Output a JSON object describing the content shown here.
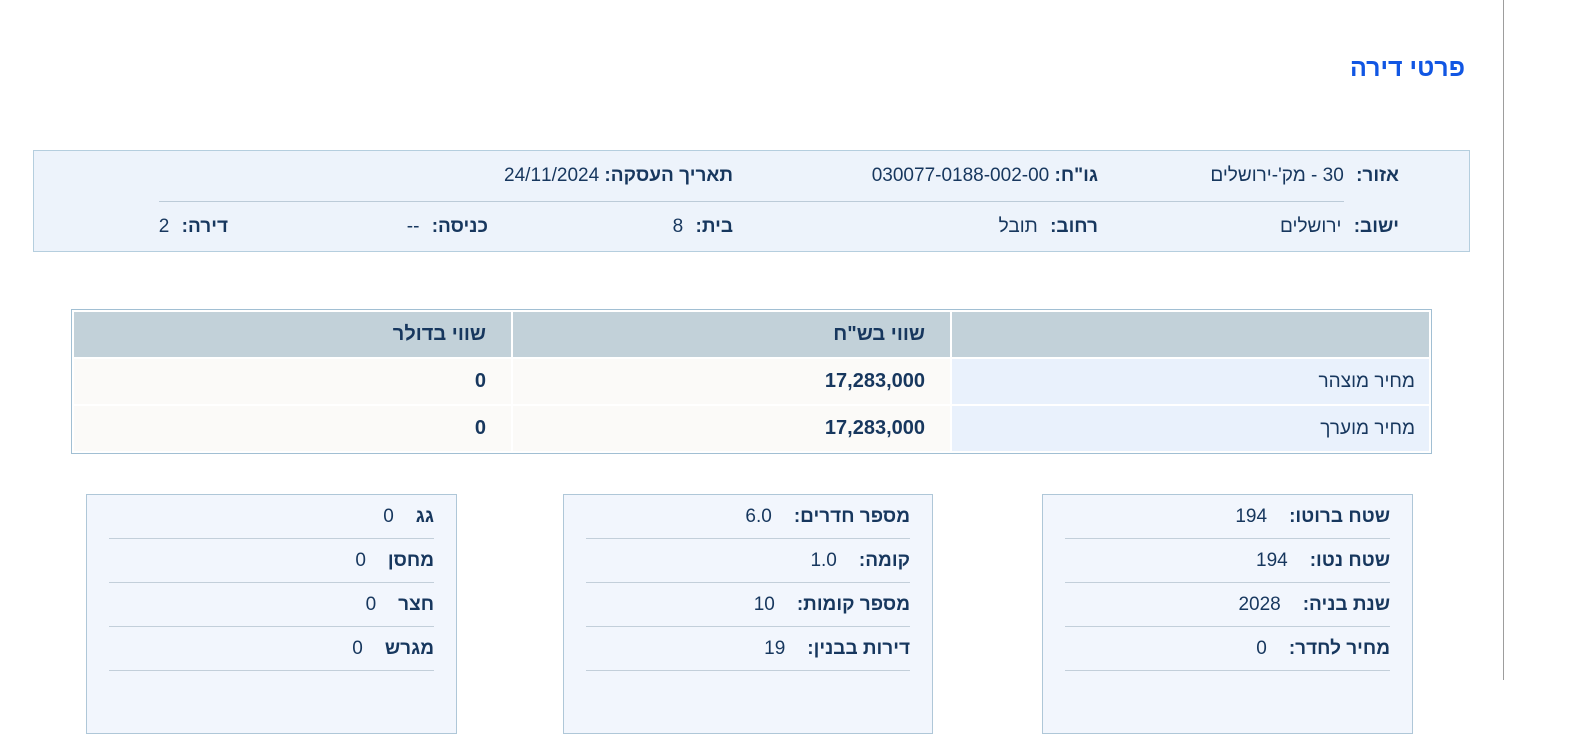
{
  "page": {
    "title": "פרטי דירה"
  },
  "colors": {
    "title_blue": "#1156e3",
    "text_navy": "#17375e",
    "table_header_bg": "#c2d1d9",
    "label_cell_bg": "#e9f1fc",
    "box_bg": "#f2f6fd",
    "info_box_bg": "#edf3fb"
  },
  "info_box": {
    "area": {
      "label": "אזור:",
      "value": "30 - מק'-ירושלים"
    },
    "gush_helka": {
      "label": "גו\"ח:",
      "value": "030077-0188-002-00"
    },
    "deal_date": {
      "label": "תאריך העסקה:",
      "value": "24/11/2024"
    },
    "city": {
      "label": "ישוב:",
      "value": "ירושלים"
    },
    "street": {
      "label": "רחוב:",
      "value": "תובל"
    },
    "house": {
      "label": "בית:",
      "value": "8"
    },
    "entrance": {
      "label": "כניסה:",
      "value": "--"
    },
    "apartment": {
      "label": "דירה:",
      "value": "2"
    }
  },
  "price_table": {
    "headers": {
      "label": "",
      "nis": "שווי בש\"ח",
      "usd": "שווי בדולר"
    },
    "rows": [
      {
        "label": "מחיר מוצהר",
        "nis": "17,283,000",
        "usd": "0"
      },
      {
        "label": "מחיר מוערך",
        "nis": "17,283,000",
        "usd": "0"
      }
    ]
  },
  "detail_boxes": {
    "areas": {
      "rows": [
        {
          "label": "שטח ברוטו:",
          "value": "194"
        },
        {
          "label": "שטח נטו:",
          "value": "194"
        },
        {
          "label": "שנת בניה:",
          "value": "2028"
        },
        {
          "label": "מחיר לחדר:",
          "value": "0"
        }
      ]
    },
    "building": {
      "rows": [
        {
          "label": "מספר חדרים:",
          "value": "6.0"
        },
        {
          "label": "קומה:",
          "value": "1.0"
        },
        {
          "label": "מספר קומות:",
          "value": "10"
        },
        {
          "label": "דירות בבנין:",
          "value": "19"
        }
      ]
    },
    "extras": {
      "rows": [
        {
          "label": "גג",
          "value": "0"
        },
        {
          "label": "מחסן",
          "value": "0"
        },
        {
          "label": "חצר",
          "value": "0"
        },
        {
          "label": "מגרש",
          "value": "0"
        }
      ]
    }
  }
}
